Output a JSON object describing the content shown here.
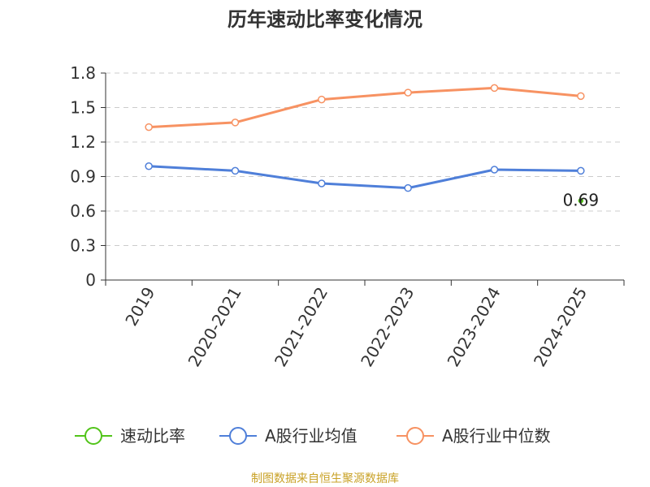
{
  "chart_data": {
    "type": "line",
    "title": "历年速动比率变化情况",
    "categories": [
      "2019",
      "2020-2021",
      "2021-2022",
      "2022-2023",
      "2023-2024",
      "2024-2025"
    ],
    "series": [
      {
        "name": "速动比率",
        "color": "#52C41A",
        "values": [
          null,
          null,
          null,
          null,
          null,
          0.69
        ]
      },
      {
        "name": "A股行业均值",
        "color": "#4F7FD9",
        "values": [
          0.99,
          0.95,
          0.84,
          0.8,
          0.96,
          0.95
        ]
      },
      {
        "name": "A股行业中位数",
        "color": "#F79262",
        "values": [
          1.33,
          1.37,
          1.57,
          1.63,
          1.67,
          1.6
        ]
      }
    ],
    "ylim": [
      0,
      1.8
    ],
    "yticks": [
      "0",
      "0.3",
      "0.6",
      "0.9",
      "1.2",
      "1.5",
      "1.8"
    ],
    "grid": true,
    "legend_position": "bottom",
    "data_labels": [
      {
        "series": 0,
        "index": 5,
        "text": "0.69"
      }
    ]
  },
  "source": "制图数据来自恒生聚源数据库"
}
